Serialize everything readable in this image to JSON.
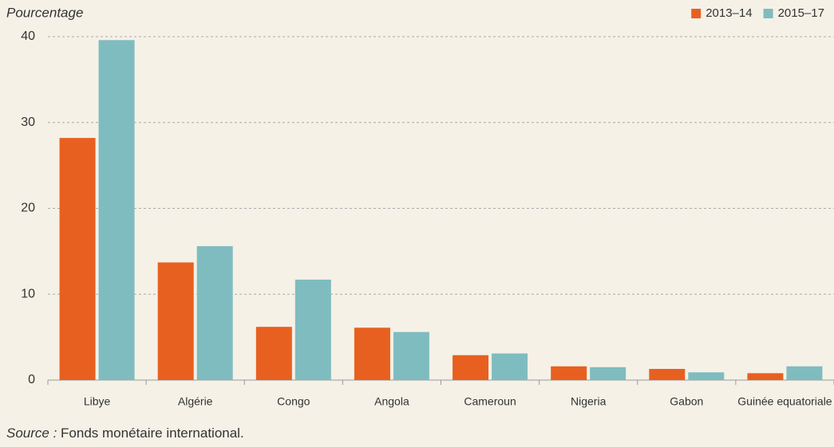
{
  "chart_data": {
    "type": "bar",
    "y_axis_label": "Pourcentage",
    "categories": [
      "Libye",
      "Algérie",
      "Congo",
      "Angola",
      "Cameroun",
      "Nigeria",
      "Gabon",
      "Guinée equatoriale"
    ],
    "series": [
      {
        "name": "2013–14",
        "color": "#e8601f",
        "values": [
          28.2,
          13.7,
          6.2,
          6.1,
          2.9,
          1.6,
          1.3,
          0.8
        ]
      },
      {
        "name": "2015–17",
        "color": "#7fbcc0",
        "values": [
          39.6,
          15.6,
          11.7,
          5.6,
          3.1,
          1.5,
          0.9,
          1.6
        ]
      }
    ],
    "ylim": [
      0,
      40
    ],
    "yticks": [
      0,
      10,
      20,
      30,
      40
    ],
    "grid": true,
    "legend": "top-right",
    "source_label": "Source :",
    "source_text": "Fonds monétaire international."
  }
}
